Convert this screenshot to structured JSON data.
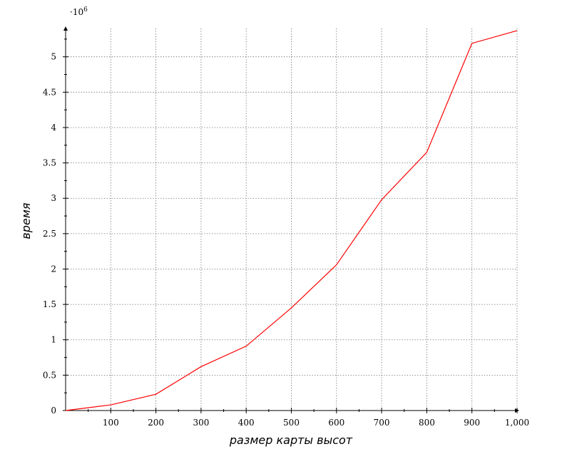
{
  "chart_data": {
    "type": "line",
    "xlabel": "размер карты высот",
    "ylabel": "время",
    "y_multiplier_base": "·10",
    "y_multiplier_exp": "6",
    "xlim": [
      0,
      1000
    ],
    "ylim": [
      0,
      5.4
    ],
    "grid": true,
    "x_ticks": [
      100,
      200,
      300,
      400,
      500,
      600,
      700,
      800,
      900,
      1000
    ],
    "x_tick_labels": [
      "100",
      "200",
      "300",
      "400",
      "500",
      "600",
      "700",
      "800",
      "900",
      "1,000"
    ],
    "x_minor_ticks": [
      50,
      150,
      250,
      350,
      450,
      550,
      650,
      750,
      850,
      950
    ],
    "y_ticks": [
      0,
      0.5,
      1,
      1.5,
      2,
      2.5,
      3,
      3.5,
      4,
      4.5,
      5
    ],
    "y_tick_labels": [
      "0",
      "0.5",
      "1",
      "1.5",
      "2",
      "2.5",
      "3",
      "3.5",
      "4",
      "4.5",
      "5"
    ],
    "y_minor_ticks": [
      0.25,
      0.75,
      1.25,
      1.75,
      2.25,
      2.75,
      3.25,
      3.75,
      4.25,
      4.75,
      5.25
    ],
    "series": [
      {
        "color": "#ff0000",
        "x": [
          0,
          100,
          200,
          300,
          400,
          500,
          600,
          700,
          800,
          900,
          1000
        ],
        "y": [
          0,
          0.08,
          0.23,
          0.62,
          0.91,
          1.45,
          2.06,
          2.98,
          3.65,
          5.19,
          5.37
        ]
      }
    ]
  }
}
